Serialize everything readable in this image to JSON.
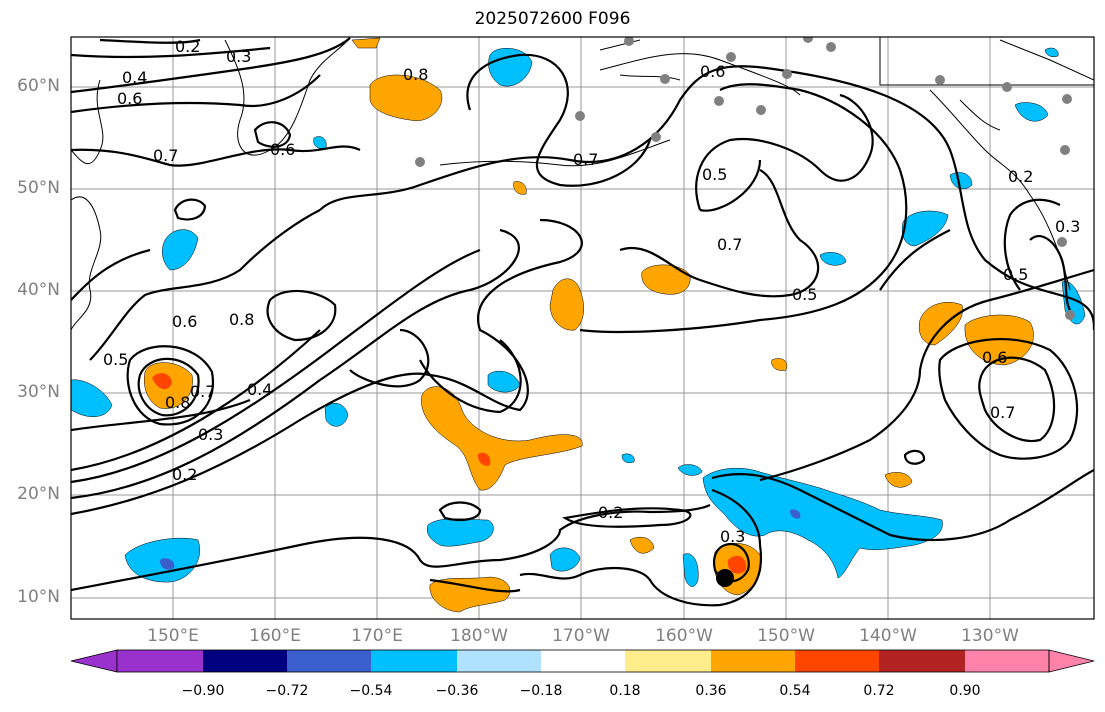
{
  "title": "2025072600 F096",
  "latitude_labels": [
    "60°N",
    "50°N",
    "40°N",
    "30°N",
    "20°N",
    "10°N"
  ],
  "longitude_labels": [
    "150°E",
    "160°E",
    "170°E",
    "180°W",
    "170°W",
    "160°W",
    "150°W",
    "140°W",
    "130°W"
  ],
  "contour_labels": [
    "0.2",
    "0.3",
    "0.4",
    "0.5",
    "0.6",
    "0.7",
    "0.8"
  ],
  "colorbar": {
    "ticks": [
      "−0.90",
      "−0.72",
      "−0.54",
      "−0.36",
      "−0.18",
      "0.18",
      "0.36",
      "0.54",
      "0.72",
      "0.90"
    ],
    "colors": [
      "#9932cc",
      "#000080",
      "#3a5fcd",
      "#00bfff",
      "#b0e2ff",
      "#ffffff",
      "#ffec8b",
      "#ffa500",
      "#ff4500",
      "#b22222",
      "#ff82ab"
    ]
  },
  "fill_colors": {
    "orange": "#ffa500",
    "red": "#ff4500",
    "cyan": "#00bfff",
    "blue": "#3a5fcd",
    "station": "#808080",
    "storm": "#000000"
  }
}
